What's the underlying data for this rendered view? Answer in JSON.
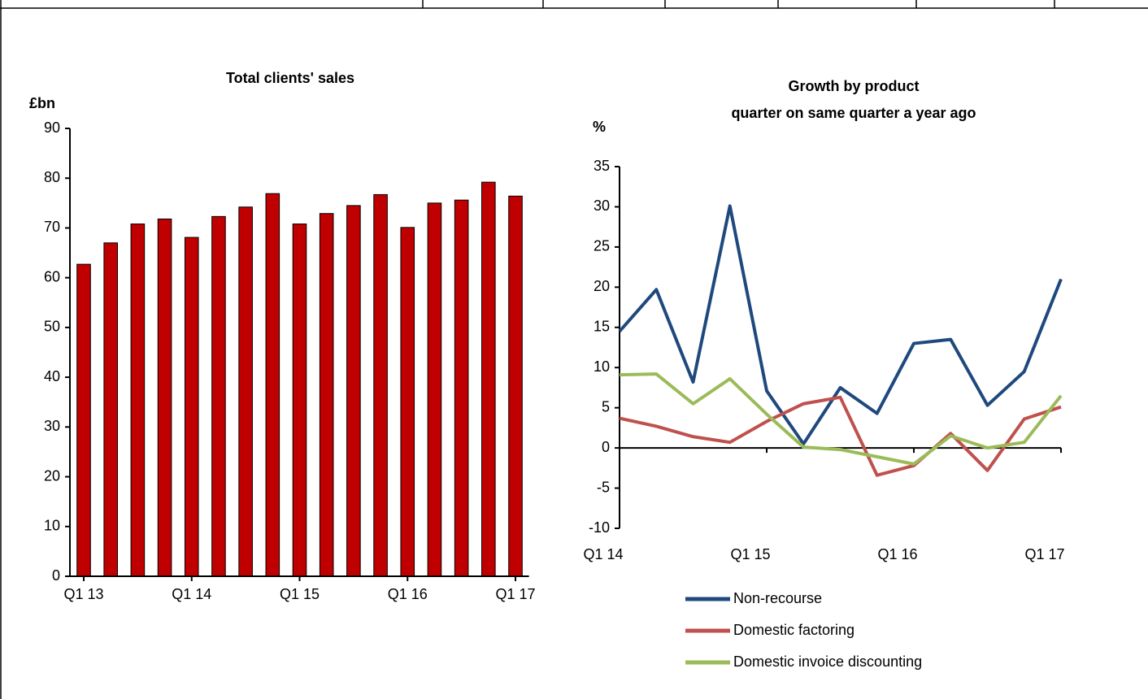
{
  "chart_data": [
    {
      "type": "bar",
      "title": "Total clients' sales",
      "y_label": "£bn",
      "categories": [
        "Q1 13",
        null,
        null,
        null,
        "Q1 14",
        null,
        null,
        null,
        "Q1 15",
        null,
        null,
        null,
        "Q1 16",
        null,
        null,
        null,
        "Q1 17"
      ],
      "values": [
        62.7,
        67,
        70.8,
        71.8,
        68.1,
        72.3,
        74.2,
        76.9,
        70.8,
        72.9,
        74.5,
        76.7,
        70.1,
        75,
        75.6,
        79.2,
        76.4
      ],
      "color": "#c00000",
      "ylim": [
        0,
        90
      ],
      "yticks": [
        0,
        10,
        20,
        30,
        40,
        50,
        60,
        70,
        80,
        90
      ]
    },
    {
      "type": "line",
      "title": "Growth by product",
      "subtitle": "quarter on same quarter a year ago",
      "y_label": "%",
      "categories": [
        "Q1 14",
        null,
        null,
        null,
        "Q1 15",
        null,
        null,
        null,
        "Q1 16",
        null,
        null,
        null,
        "Q1 17"
      ],
      "series": [
        {
          "name": "Non-recourse",
          "color": "#1f497d",
          "values": [
            14.5,
            19.7,
            8.2,
            30.1,
            7.1,
            0.5,
            7.5,
            4.3,
            13,
            13.5,
            5.3,
            9.5,
            21
          ]
        },
        {
          "name": "Domestic factoring",
          "color": "#c0504d",
          "values": [
            3.7,
            2.7,
            1.4,
            0.7,
            3.3,
            5.5,
            6.3,
            -3.4,
            -2.2,
            1.8,
            -2.8,
            3.6,
            5.1
          ]
        },
        {
          "name": "Domestic invoice discounting",
          "color": "#9bbb59",
          "values": [
            9.1,
            9.2,
            5.5,
            8.6,
            4.2,
            0.1,
            -0.2,
            -1.1,
            -2,
            1.5,
            0,
            0.7,
            6.5
          ]
        }
      ],
      "ylim": [
        -10,
        35
      ],
      "yticks": [
        -10,
        -5,
        0,
        5,
        10,
        15,
        20,
        25,
        30,
        35
      ]
    }
  ]
}
